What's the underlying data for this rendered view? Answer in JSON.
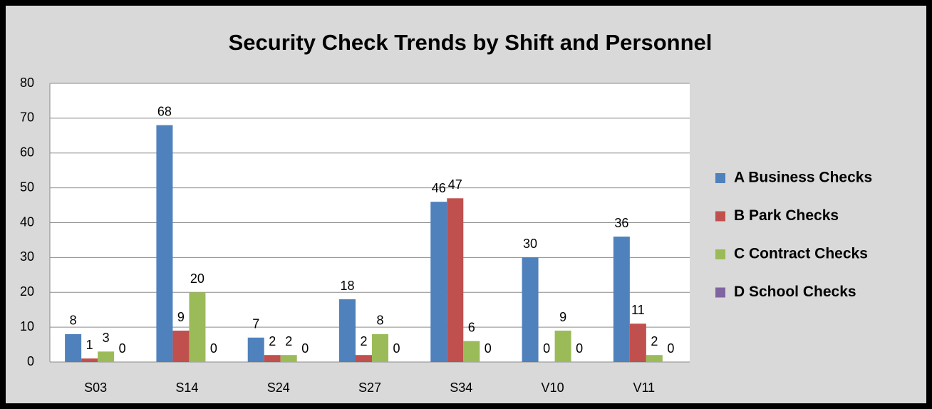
{
  "chart_data": {
    "type": "bar",
    "title": "Security Check Trends by Shift and Personnel",
    "categories": [
      "S03",
      "S14",
      "S24",
      "S27",
      "S34",
      "V10",
      "V11"
    ],
    "series": [
      {
        "name": "A Business Checks",
        "color": "#4f81bd",
        "values": [
          8,
          68,
          7,
          18,
          46,
          30,
          36
        ]
      },
      {
        "name": "B Park Checks",
        "color": "#c0504d",
        "values": [
          1,
          9,
          2,
          2,
          47,
          0,
          11
        ]
      },
      {
        "name": "C Contract Checks",
        "color": "#9bbb59",
        "values": [
          3,
          20,
          2,
          8,
          6,
          9,
          2
        ]
      },
      {
        "name": "D School Checks",
        "color": "#8064a2",
        "values": [
          0,
          0,
          0,
          0,
          0,
          0,
          0
        ]
      }
    ],
    "ylim": [
      0,
      80
    ],
    "yticks": [
      0,
      10,
      20,
      30,
      40,
      50,
      60,
      70,
      80
    ],
    "grid": true,
    "legend": "right"
  }
}
